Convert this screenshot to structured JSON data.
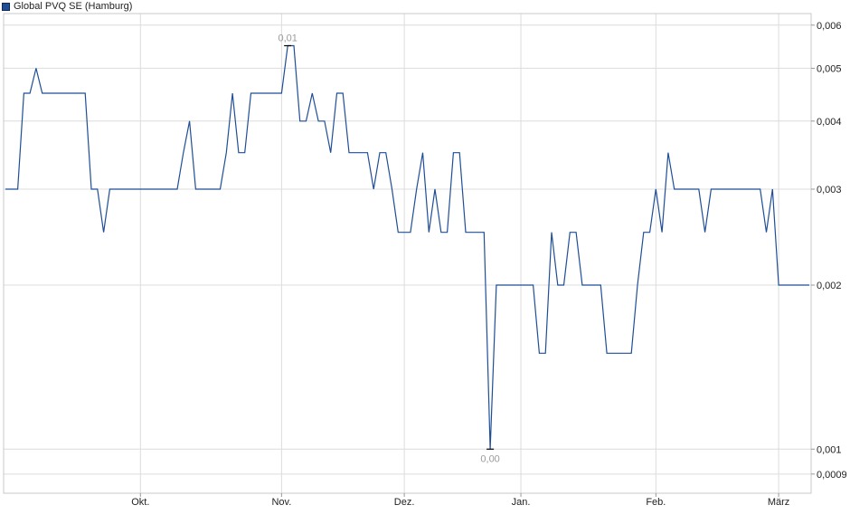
{
  "chart_data": {
    "type": "line",
    "legend": "Global PVQ SE (Hamburg)",
    "legend_position": "top-left",
    "grid": true,
    "y_scale": "log",
    "y_ticks": [
      {
        "value": 0.006,
        "label": "0,006"
      },
      {
        "value": 0.005,
        "label": "0,005"
      },
      {
        "value": 0.004,
        "label": "0,004"
      },
      {
        "value": 0.003,
        "label": "0,003"
      },
      {
        "value": 0.002,
        "label": "0,002"
      },
      {
        "value": 0.001,
        "label": "0,001"
      },
      {
        "value": 0.0009,
        "label": "0,0009"
      }
    ],
    "ylim": [
      0.00083,
      0.0063
    ],
    "x_ticks": [
      {
        "index": 22,
        "label": "Okt."
      },
      {
        "index": 45,
        "label": "Nov."
      },
      {
        "index": 65,
        "label": "Dez."
      },
      {
        "index": 84,
        "label": "Jan."
      },
      {
        "index": 106,
        "label": "Feb."
      },
      {
        "index": 126,
        "label": "März"
      }
    ],
    "annotations": [
      {
        "label": "0,01",
        "index": 46,
        "value": 0.0055,
        "position": "above"
      },
      {
        "label": "0,00",
        "index": 79,
        "value": 0.001,
        "position": "below"
      }
    ],
    "color": "#1f4e97",
    "series": [
      {
        "values": [
          0.003,
          0.003,
          0.003,
          0.0045,
          0.0045,
          0.005,
          0.0045,
          0.0045,
          0.0045,
          0.0045,
          0.0045,
          0.0045,
          0.0045,
          0.0045,
          0.003,
          0.003,
          0.0025,
          0.003,
          0.003,
          0.003,
          0.003,
          0.003,
          0.003,
          0.003,
          0.003,
          0.003,
          0.003,
          0.003,
          0.003,
          0.0035,
          0.004,
          0.003,
          0.003,
          0.003,
          0.003,
          0.003,
          0.0035,
          0.0045,
          0.0035,
          0.0035,
          0.0045,
          0.0045,
          0.0045,
          0.0045,
          0.0045,
          0.0045,
          0.0055,
          0.0055,
          0.004,
          0.004,
          0.0045,
          0.004,
          0.004,
          0.0035,
          0.0045,
          0.0045,
          0.0035,
          0.0035,
          0.0035,
          0.0035,
          0.003,
          0.0035,
          0.0035,
          0.003,
          0.0025,
          0.0025,
          0.0025,
          0.003,
          0.0035,
          0.0025,
          0.003,
          0.0025,
          0.0025,
          0.0035,
          0.0035,
          0.0025,
          0.0025,
          0.0025,
          0.0025,
          0.001,
          0.002,
          0.002,
          0.002,
          0.002,
          0.002,
          0.002,
          0.002,
          0.0015,
          0.0015,
          0.0025,
          0.002,
          0.002,
          0.0025,
          0.0025,
          0.002,
          0.002,
          0.002,
          0.002,
          0.0015,
          0.0015,
          0.0015,
          0.0015,
          0.0015,
          0.002,
          0.0025,
          0.0025,
          0.003,
          0.0025,
          0.0035,
          0.003,
          0.003,
          0.003,
          0.003,
          0.003,
          0.0025,
          0.003,
          0.003,
          0.003,
          0.003,
          0.003,
          0.003,
          0.003,
          0.003,
          0.003,
          0.0025,
          0.003,
          0.002,
          0.002,
          0.002,
          0.002,
          0.002,
          0.002
        ]
      }
    ]
  }
}
